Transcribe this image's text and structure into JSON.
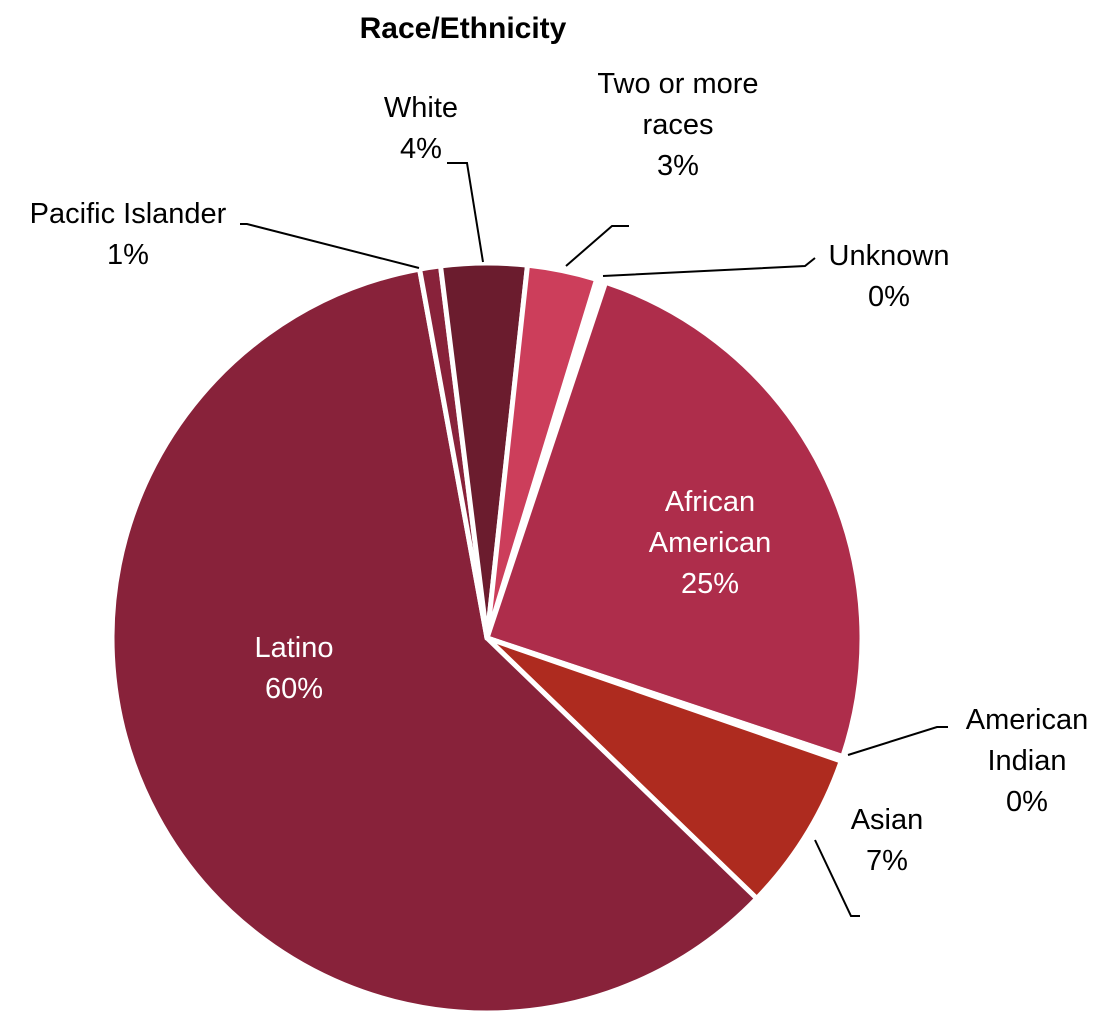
{
  "chart_data": {
    "type": "pie",
    "title": "Race/Ethnicity",
    "slices": [
      {
        "name": "Unknown",
        "label_lines": [
          "Unknown"
        ],
        "percent_label": "0%",
        "value": 0.4,
        "color": "#ffffff"
      },
      {
        "name": "African American",
        "label_lines": [
          "African",
          "American"
        ],
        "percent_label": "25%",
        "value": 25.0,
        "color": "#ae2d4b"
      },
      {
        "name": "American Indian",
        "label_lines": [
          "American",
          "Indian"
        ],
        "percent_label": "0%",
        "value": 0.2,
        "color": "#ffffff"
      },
      {
        "name": "Asian",
        "label_lines": [
          "Asian"
        ],
        "percent_label": "7%",
        "value": 6.9,
        "color": "#ae2b1f"
      },
      {
        "name": "Latino",
        "label_lines": [
          "Latino"
        ],
        "percent_label": "60%",
        "value": 59.9,
        "color": "#88223a"
      },
      {
        "name": "Pacific Islander",
        "label_lines": [
          "Pacific Islander"
        ],
        "percent_label": "1%",
        "value": 0.9,
        "color": "#88223a"
      },
      {
        "name": "White",
        "label_lines": [
          "White"
        ],
        "percent_label": "4%",
        "value": 3.7,
        "color": "#6b1c2e"
      },
      {
        "name": "Two or more races",
        "label_lines": [
          "Two or more",
          "races"
        ],
        "percent_label": "3%",
        "value": 3.0,
        "color": "#cc3e5b"
      }
    ],
    "inside_label_color": "#ffffff",
    "outside_label_color": "#000000",
    "separator_color": "#ffffff"
  }
}
